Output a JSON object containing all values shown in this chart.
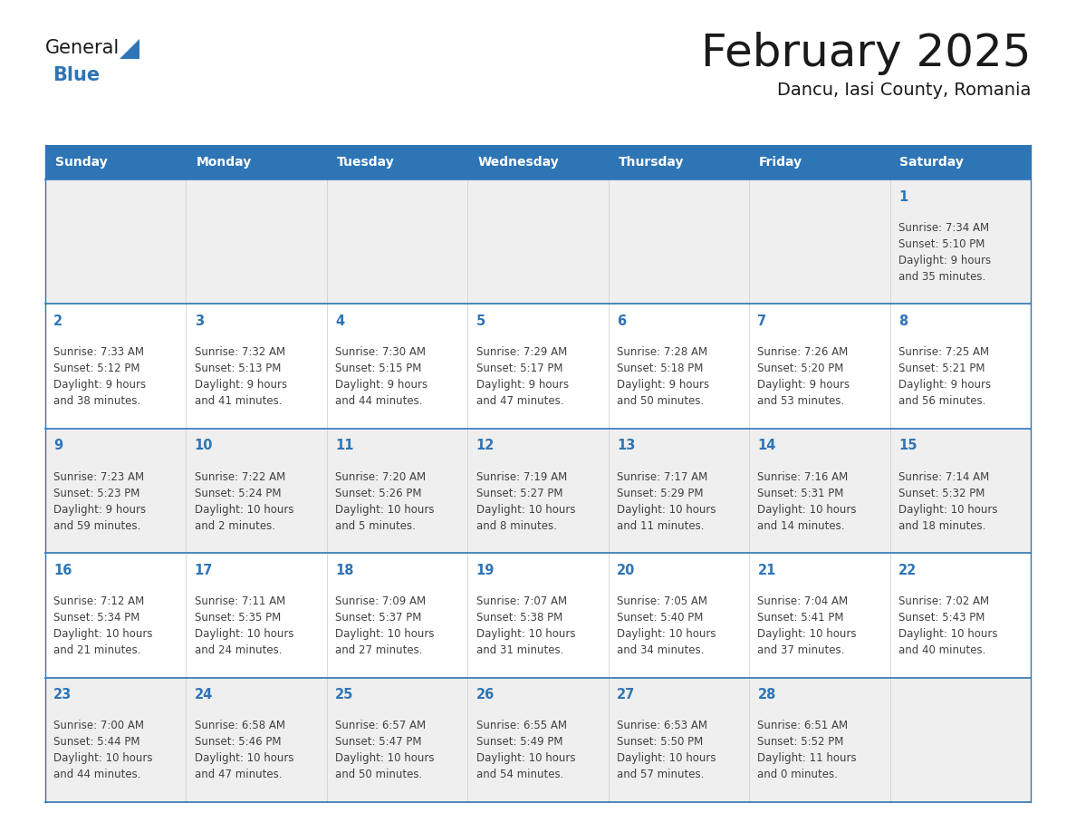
{
  "title": "February 2025",
  "subtitle": "Dancu, Iasi County, Romania",
  "header_bg": "#2E75B6",
  "header_text_color": "#FFFFFF",
  "cell_bg_odd": "#EFEFEF",
  "cell_bg_even": "#FFFFFF",
  "cell_border_top_color": "#2E75B6",
  "day_number_color": "#2E75B6",
  "info_text_color": "#404040",
  "title_color": "#1a1a1a",
  "logo_black": "#1a1a1a",
  "logo_blue": "#2E75B6",
  "weekdays": [
    "Sunday",
    "Monday",
    "Tuesday",
    "Wednesday",
    "Thursday",
    "Friday",
    "Saturday"
  ],
  "weeks": [
    [
      {
        "day": null,
        "info": ""
      },
      {
        "day": null,
        "info": ""
      },
      {
        "day": null,
        "info": ""
      },
      {
        "day": null,
        "info": ""
      },
      {
        "day": null,
        "info": ""
      },
      {
        "day": null,
        "info": ""
      },
      {
        "day": 1,
        "info": "Sunrise: 7:34 AM\nSunset: 5:10 PM\nDaylight: 9 hours\nand 35 minutes."
      }
    ],
    [
      {
        "day": 2,
        "info": "Sunrise: 7:33 AM\nSunset: 5:12 PM\nDaylight: 9 hours\nand 38 minutes."
      },
      {
        "day": 3,
        "info": "Sunrise: 7:32 AM\nSunset: 5:13 PM\nDaylight: 9 hours\nand 41 minutes."
      },
      {
        "day": 4,
        "info": "Sunrise: 7:30 AM\nSunset: 5:15 PM\nDaylight: 9 hours\nand 44 minutes."
      },
      {
        "day": 5,
        "info": "Sunrise: 7:29 AM\nSunset: 5:17 PM\nDaylight: 9 hours\nand 47 minutes."
      },
      {
        "day": 6,
        "info": "Sunrise: 7:28 AM\nSunset: 5:18 PM\nDaylight: 9 hours\nand 50 minutes."
      },
      {
        "day": 7,
        "info": "Sunrise: 7:26 AM\nSunset: 5:20 PM\nDaylight: 9 hours\nand 53 minutes."
      },
      {
        "day": 8,
        "info": "Sunrise: 7:25 AM\nSunset: 5:21 PM\nDaylight: 9 hours\nand 56 minutes."
      }
    ],
    [
      {
        "day": 9,
        "info": "Sunrise: 7:23 AM\nSunset: 5:23 PM\nDaylight: 9 hours\nand 59 minutes."
      },
      {
        "day": 10,
        "info": "Sunrise: 7:22 AM\nSunset: 5:24 PM\nDaylight: 10 hours\nand 2 minutes."
      },
      {
        "day": 11,
        "info": "Sunrise: 7:20 AM\nSunset: 5:26 PM\nDaylight: 10 hours\nand 5 minutes."
      },
      {
        "day": 12,
        "info": "Sunrise: 7:19 AM\nSunset: 5:27 PM\nDaylight: 10 hours\nand 8 minutes."
      },
      {
        "day": 13,
        "info": "Sunrise: 7:17 AM\nSunset: 5:29 PM\nDaylight: 10 hours\nand 11 minutes."
      },
      {
        "day": 14,
        "info": "Sunrise: 7:16 AM\nSunset: 5:31 PM\nDaylight: 10 hours\nand 14 minutes."
      },
      {
        "day": 15,
        "info": "Sunrise: 7:14 AM\nSunset: 5:32 PM\nDaylight: 10 hours\nand 18 minutes."
      }
    ],
    [
      {
        "day": 16,
        "info": "Sunrise: 7:12 AM\nSunset: 5:34 PM\nDaylight: 10 hours\nand 21 minutes."
      },
      {
        "day": 17,
        "info": "Sunrise: 7:11 AM\nSunset: 5:35 PM\nDaylight: 10 hours\nand 24 minutes."
      },
      {
        "day": 18,
        "info": "Sunrise: 7:09 AM\nSunset: 5:37 PM\nDaylight: 10 hours\nand 27 minutes."
      },
      {
        "day": 19,
        "info": "Sunrise: 7:07 AM\nSunset: 5:38 PM\nDaylight: 10 hours\nand 31 minutes."
      },
      {
        "day": 20,
        "info": "Sunrise: 7:05 AM\nSunset: 5:40 PM\nDaylight: 10 hours\nand 34 minutes."
      },
      {
        "day": 21,
        "info": "Sunrise: 7:04 AM\nSunset: 5:41 PM\nDaylight: 10 hours\nand 37 minutes."
      },
      {
        "day": 22,
        "info": "Sunrise: 7:02 AM\nSunset: 5:43 PM\nDaylight: 10 hours\nand 40 minutes."
      }
    ],
    [
      {
        "day": 23,
        "info": "Sunrise: 7:00 AM\nSunset: 5:44 PM\nDaylight: 10 hours\nand 44 minutes."
      },
      {
        "day": 24,
        "info": "Sunrise: 6:58 AM\nSunset: 5:46 PM\nDaylight: 10 hours\nand 47 minutes."
      },
      {
        "day": 25,
        "info": "Sunrise: 6:57 AM\nSunset: 5:47 PM\nDaylight: 10 hours\nand 50 minutes."
      },
      {
        "day": 26,
        "info": "Sunrise: 6:55 AM\nSunset: 5:49 PM\nDaylight: 10 hours\nand 54 minutes."
      },
      {
        "day": 27,
        "info": "Sunrise: 6:53 AM\nSunset: 5:50 PM\nDaylight: 10 hours\nand 57 minutes."
      },
      {
        "day": 28,
        "info": "Sunrise: 6:51 AM\nSunset: 5:52 PM\nDaylight: 11 hours\nand 0 minutes."
      },
      {
        "day": null,
        "info": ""
      }
    ]
  ]
}
